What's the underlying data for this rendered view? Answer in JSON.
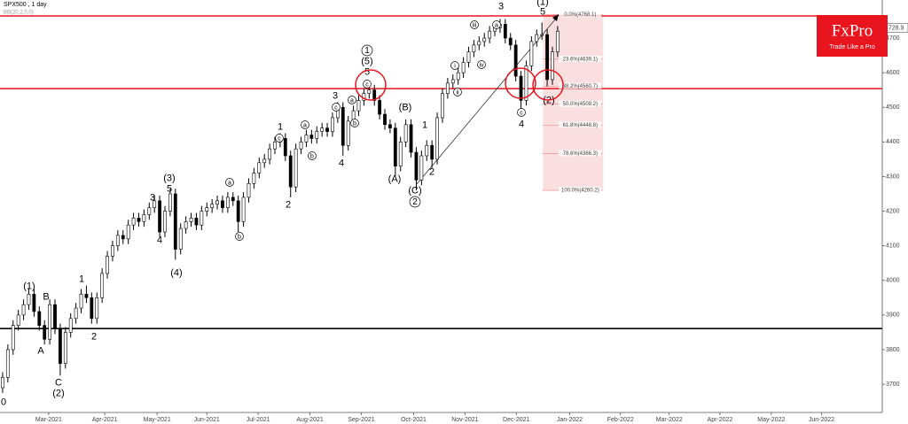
{
  "chart_data": {
    "type": "candlestick",
    "title": "SPX500 , 1 day",
    "subtitle": "BB(20,2,0,0)",
    "last_price": {
      "value": 4728.9,
      "label": "4728.9"
    },
    "ylim": [
      3621,
      4810
    ],
    "yticks": [
      3700,
      3800,
      3900,
      4000,
      4100,
      4200,
      4300,
      4400,
      4500,
      4600,
      4700
    ],
    "xlim": [
      -0.5,
      168
    ],
    "xticks": [
      {
        "value": 8.8,
        "label": "Mar-2021"
      },
      {
        "value": 19.5,
        "label": "Apr-2021"
      },
      {
        "value": 29.5,
        "label": "May-2021"
      },
      {
        "value": 39,
        "label": "Jun-2021"
      },
      {
        "value": 48.8,
        "label": "Jul-2021"
      },
      {
        "value": 58.7,
        "label": "Aug-2021"
      },
      {
        "value": 68.5,
        "label": "Sep-2021"
      },
      {
        "value": 78.5,
        "label": "Oct-2021"
      },
      {
        "value": 88.3,
        "label": "Nov-2021"
      },
      {
        "value": 98.1,
        "label": "Dec-2021"
      },
      {
        "value": 108.3,
        "label": "Jan-2022"
      },
      {
        "value": 118,
        "label": "Feb-2022"
      },
      {
        "value": 127.3,
        "label": "Mar-2022"
      },
      {
        "value": 137,
        "label": "Apr-2022"
      },
      {
        "value": 146.8,
        "label": "May-2022"
      },
      {
        "value": 156.4,
        "label": "Jun-2022"
      }
    ],
    "up_color": "#ffffff",
    "down_color": "#000000",
    "ohlc": [
      [
        3690,
        3735,
        3675,
        3720
      ],
      [
        3720,
        3815,
        3705,
        3800
      ],
      [
        3800,
        3885,
        3785,
        3870
      ],
      [
        3870,
        3915,
        3855,
        3900
      ],
      [
        3900,
        3945,
        3885,
        3930
      ],
      [
        3930,
        3975,
        3915,
        3960
      ],
      [
        3960,
        3975,
        3895,
        3910
      ],
      [
        3910,
        3925,
        3855,
        3870
      ],
      [
        3870,
        3885,
        3815,
        3830
      ],
      [
        3830,
        3945,
        3815,
        3930
      ],
      [
        3930,
        3945,
        3845,
        3860
      ],
      [
        3860,
        3875,
        3725,
        3760
      ],
      [
        3760,
        3865,
        3745,
        3850
      ],
      [
        3850,
        3905,
        3835,
        3890
      ],
      [
        3890,
        3935,
        3875,
        3920
      ],
      [
        3920,
        3975,
        3905,
        3960
      ],
      [
        3960,
        3985,
        3935,
        3950
      ],
      [
        3950,
        3965,
        3875,
        3890
      ],
      [
        3890,
        3965,
        3875,
        3950
      ],
      [
        3950,
        4035,
        3935,
        4020
      ],
      [
        4020,
        4085,
        4005,
        4070
      ],
      [
        4070,
        4115,
        4055,
        4100
      ],
      [
        4100,
        4145,
        4085,
        4130
      ],
      [
        4130,
        4145,
        4105,
        4120
      ],
      [
        4120,
        4175,
        4105,
        4160
      ],
      [
        4160,
        4195,
        4145,
        4180
      ],
      [
        4180,
        4195,
        4155,
        4170
      ],
      [
        4170,
        4205,
        4155,
        4190
      ],
      [
        4190,
        4225,
        4175,
        4210
      ],
      [
        4210,
        4245,
        4195,
        4230
      ],
      [
        4230,
        4245,
        4125,
        4140
      ],
      [
        4140,
        4215,
        4125,
        4200
      ],
      [
        4200,
        4265,
        4185,
        4250
      ],
      [
        4250,
        4265,
        4060,
        4090
      ],
      [
        4090,
        4165,
        4075,
        4150
      ],
      [
        4150,
        4185,
        4135,
        4170
      ],
      [
        4170,
        4195,
        4155,
        4180
      ],
      [
        4180,
        4195,
        4145,
        4160
      ],
      [
        4160,
        4215,
        4145,
        4200
      ],
      [
        4200,
        4225,
        4185,
        4210
      ],
      [
        4210,
        4235,
        4195,
        4220
      ],
      [
        4220,
        4245,
        4205,
        4230
      ],
      [
        4230,
        4245,
        4195,
        4210
      ],
      [
        4210,
        4255,
        4195,
        4240
      ],
      [
        4240,
        4255,
        4215,
        4230
      ],
      [
        4230,
        4245,
        4140,
        4170
      ],
      [
        4170,
        4255,
        4155,
        4240
      ],
      [
        4240,
        4295,
        4225,
        4280
      ],
      [
        4280,
        4325,
        4265,
        4310
      ],
      [
        4310,
        4355,
        4295,
        4340
      ],
      [
        4340,
        4365,
        4325,
        4350
      ],
      [
        4350,
        4395,
        4335,
        4380
      ],
      [
        4380,
        4415,
        4365,
        4400
      ],
      [
        4400,
        4425,
        4385,
        4410
      ],
      [
        4410,
        4425,
        4345,
        4360
      ],
      [
        4360,
        4375,
        4240,
        4270
      ],
      [
        4270,
        4395,
        4255,
        4380
      ],
      [
        4380,
        4415,
        4365,
        4400
      ],
      [
        4400,
        4435,
        4385,
        4420
      ],
      [
        4420,
        4435,
        4395,
        4410
      ],
      [
        4410,
        4445,
        4395,
        4430
      ],
      [
        4430,
        4455,
        4415,
        4440
      ],
      [
        4440,
        4455,
        4415,
        4430
      ],
      [
        4430,
        4485,
        4415,
        4470
      ],
      [
        4470,
        4515,
        4455,
        4500
      ],
      [
        4500,
        4515,
        4360,
        4390
      ],
      [
        4390,
        4475,
        4375,
        4460
      ],
      [
        4460,
        4505,
        4445,
        4490
      ],
      [
        4490,
        4535,
        4475,
        4520
      ],
      [
        4520,
        4555,
        4505,
        4540
      ],
      [
        4540,
        4565,
        4525,
        4550
      ],
      [
        4550,
        4565,
        4505,
        4520
      ],
      [
        4520,
        4535,
        4465,
        4480
      ],
      [
        4480,
        4495,
        4435,
        4450
      ],
      [
        4450,
        4465,
        4425,
        4440
      ],
      [
        4440,
        4455,
        4300,
        4330
      ],
      [
        4330,
        4415,
        4315,
        4400
      ],
      [
        4400,
        4465,
        4385,
        4450
      ],
      [
        4450,
        4465,
        4355,
        4370
      ],
      [
        4370,
        4385,
        4260,
        4290
      ],
      [
        4290,
        4375,
        4275,
        4360
      ],
      [
        4360,
        4405,
        4345,
        4390
      ],
      [
        4390,
        4405,
        4325,
        4350
      ],
      [
        4350,
        4485,
        4335,
        4470
      ],
      [
        4470,
        4555,
        4455,
        4540
      ],
      [
        4540,
        4585,
        4525,
        4570
      ],
      [
        4570,
        4595,
        4555,
        4580
      ],
      [
        4580,
        4615,
        4565,
        4600
      ],
      [
        4600,
        4645,
        4585,
        4630
      ],
      [
        4630,
        4675,
        4615,
        4660
      ],
      [
        4660,
        4695,
        4645,
        4680
      ],
      [
        4680,
        4705,
        4665,
        4690
      ],
      [
        4690,
        4715,
        4675,
        4700
      ],
      [
        4700,
        4735,
        4685,
        4720
      ],
      [
        4720,
        4745,
        4705,
        4730
      ],
      [
        4730,
        4755,
        4715,
        4740
      ],
      [
        4740,
        4755,
        4685,
        4700
      ],
      [
        4700,
        4715,
        4665,
        4680
      ],
      [
        4680,
        4695,
        4575,
        4590
      ],
      [
        4590,
        4605,
        4495,
        4520
      ],
      [
        4520,
        4635,
        4505,
        4620
      ],
      [
        4620,
        4705,
        4605,
        4690
      ],
      [
        4690,
        4725,
        4675,
        4710
      ],
      [
        4710,
        4745,
        4695,
        4710
      ],
      [
        4710,
        4725,
        4560,
        4580
      ],
      [
        4580,
        4675,
        4565,
        4660
      ],
      [
        4660,
        4735,
        4645,
        4720
      ]
    ],
    "hlines": [
      {
        "value": 4764,
        "color": "#e8141e"
      },
      {
        "value": 4554,
        "color": "#e8141e"
      },
      {
        "value": 3861,
        "color": "#000000"
      }
    ],
    "fib_levels": [
      {
        "value": 4768.1,
        "label": "0.0%(4768.1)"
      },
      {
        "value": 4639.1,
        "label": "23.6%(4639.1)"
      },
      {
        "value": 4560.7,
        "label": "38.2%(4560.7)"
      },
      {
        "value": 4509.2,
        "label": "50.0%(4509.2)"
      },
      {
        "value": 4448.8,
        "label": "61.8%(4448.8)"
      },
      {
        "value": 4366.3,
        "label": "78.6%(4366.3)"
      },
      {
        "value": 4260.2,
        "label": "100.0%(4260.2)"
      }
    ],
    "wave_labels": [
      "0",
      "(1)",
      "B",
      "A",
      "C",
      "(2)",
      "1",
      "2",
      "3",
      "4",
      "(3)",
      "5",
      "(4)",
      "1",
      "2",
      "3",
      "4",
      "(A)",
      "(B)",
      "(C)",
      "2",
      "1",
      "3",
      "4",
      "(1)",
      "5",
      "(2)",
      "1",
      "(5)",
      "5",
      "c",
      "b",
      "a",
      "c",
      "a",
      "b",
      "c",
      "a",
      "b",
      "2",
      "i",
      "ii",
      "iii",
      "iv",
      "c",
      "a"
    ],
    "logo": {
      "brand": "FxPro",
      "tagline": "Trade Like a Pro"
    }
  }
}
